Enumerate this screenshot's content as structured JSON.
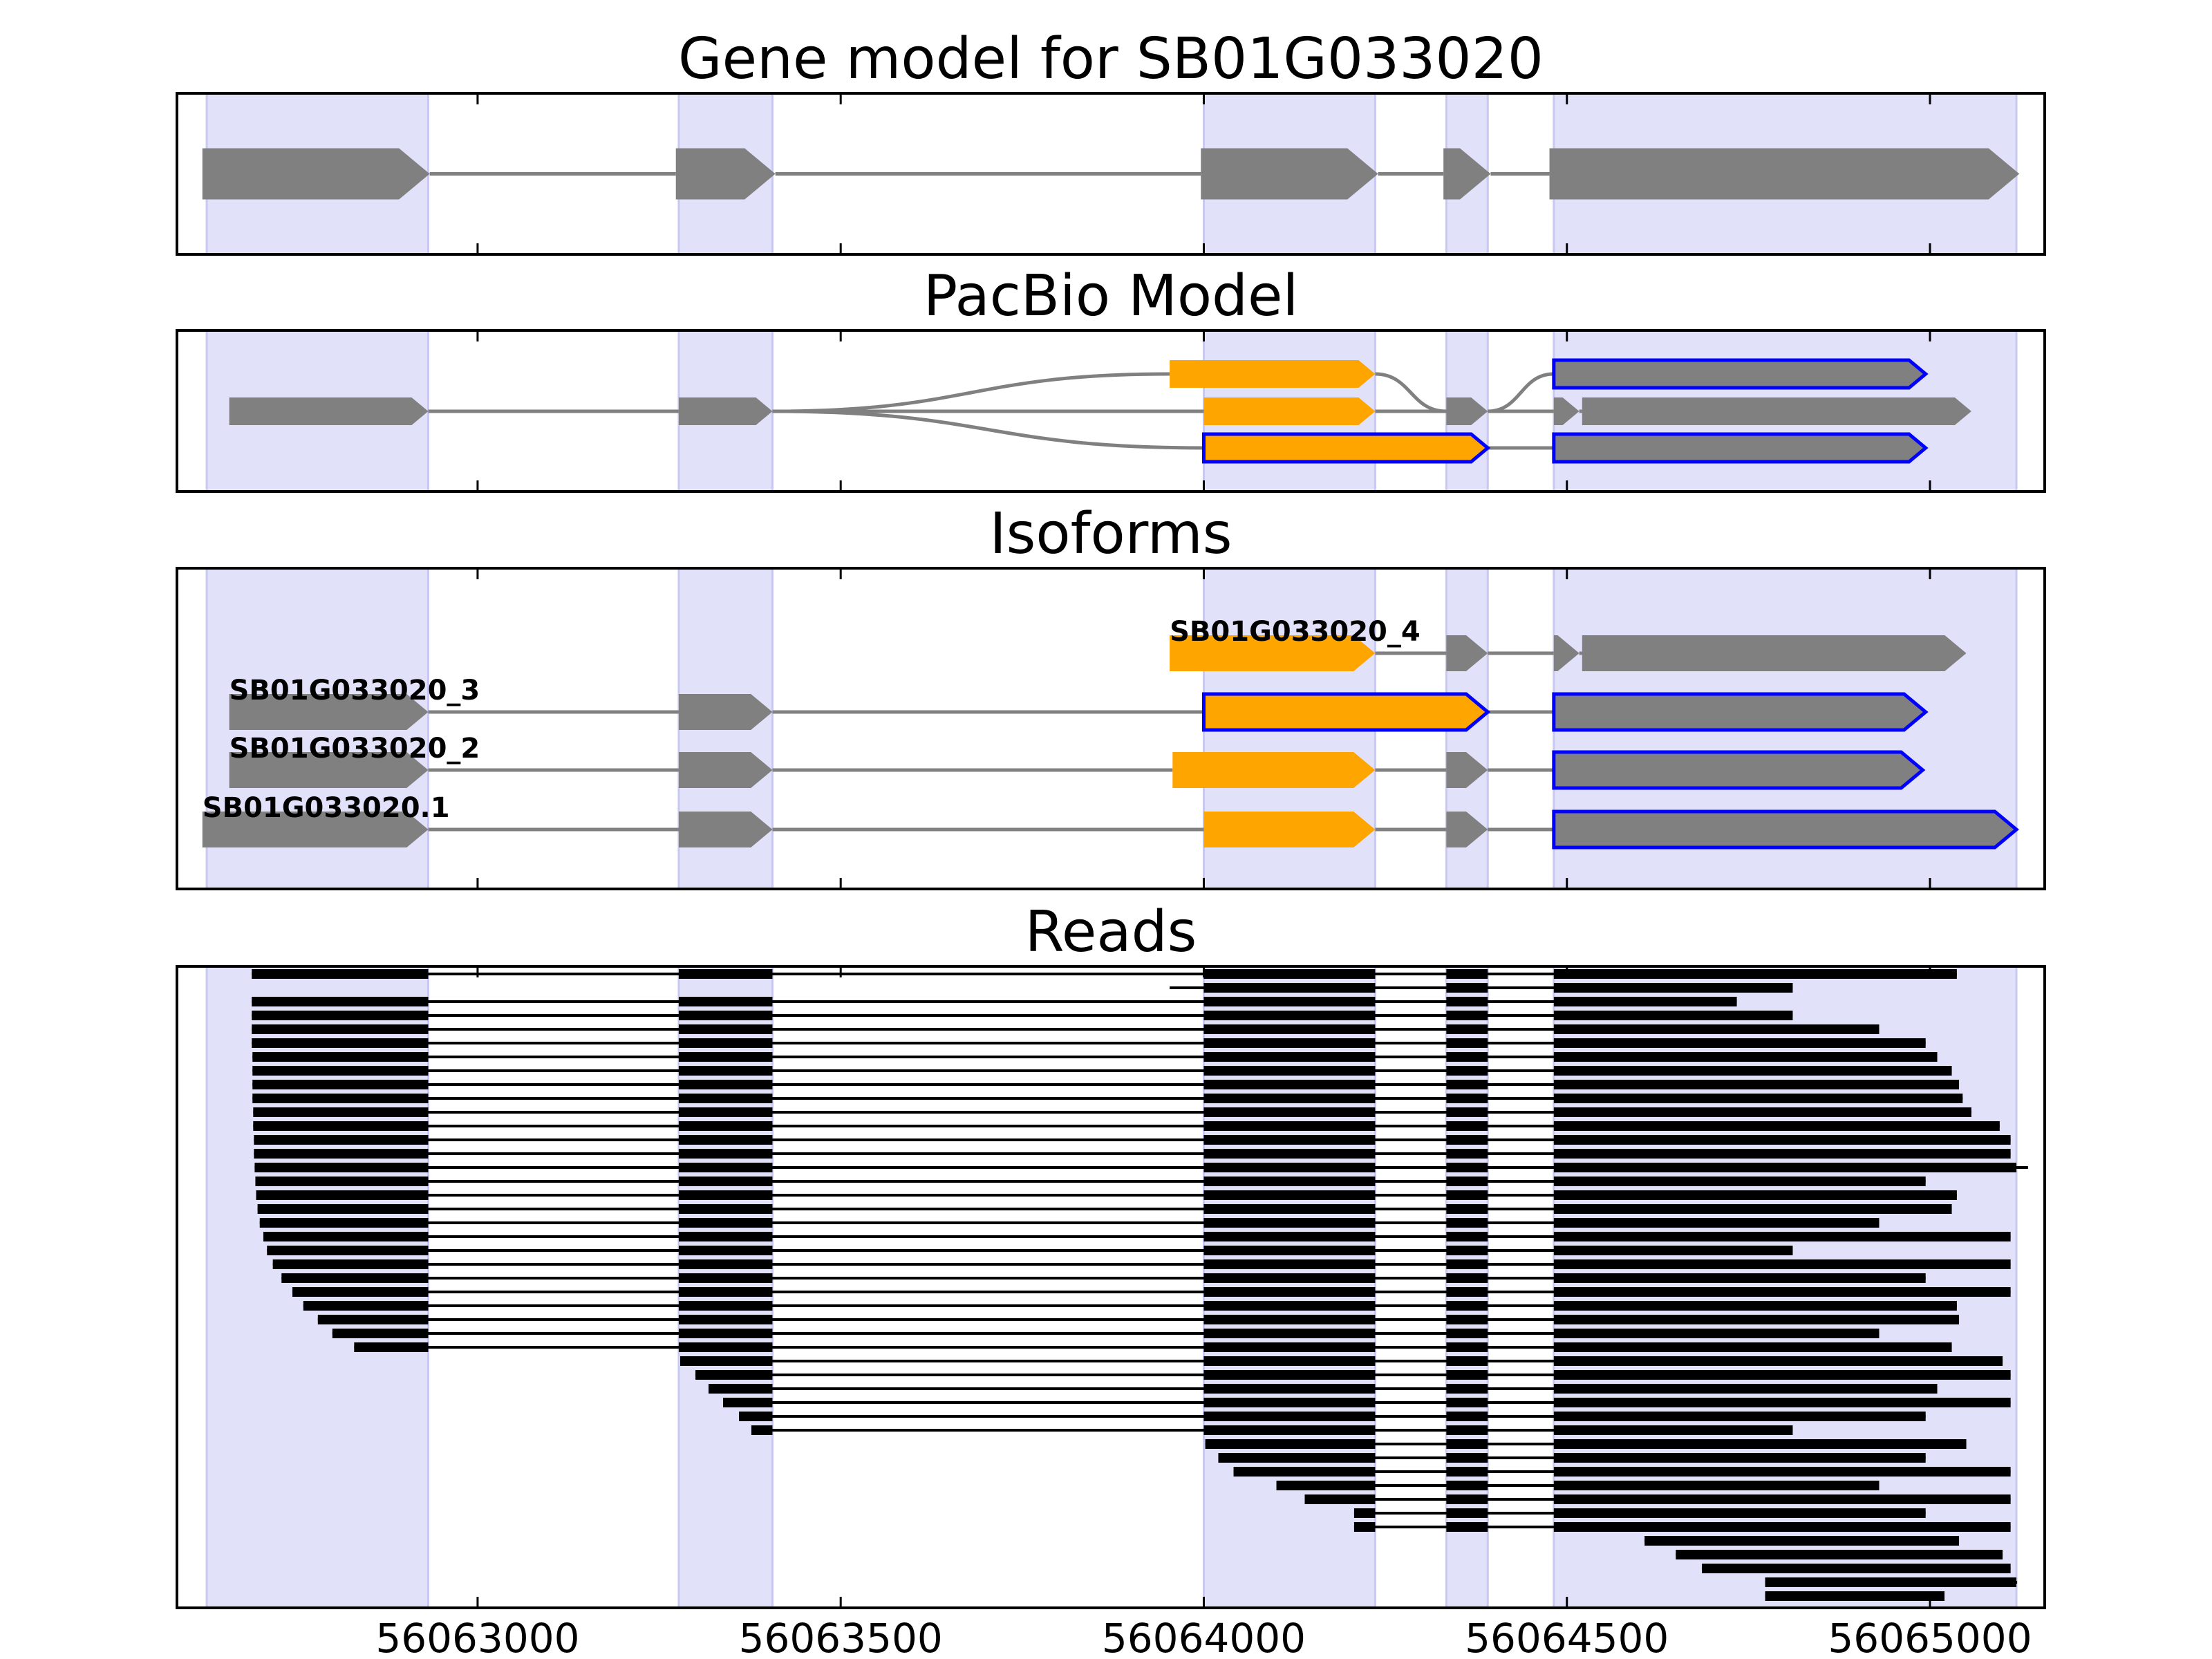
{
  "chart_data": {
    "type": "gene-structure",
    "titles": [
      "Gene model for SB01G033020",
      "PacBio Model",
      "Isoforms",
      "Reads"
    ],
    "xlim": [
      56062586,
      56065158
    ],
    "xticks": [
      56063000,
      56063500,
      56064000,
      56064500,
      56065000
    ],
    "shade_color": "#e1e1fa",
    "exons": [
      {
        "start": 56062627,
        "end": 56062932
      },
      {
        "start": 56063277,
        "end": 56063406
      },
      {
        "start": 56064000,
        "end": 56064236
      },
      {
        "start": 56064334,
        "end": 56064391
      },
      {
        "start": 56064482,
        "end": 56065119
      }
    ],
    "gene_model": {
      "color": "#808080",
      "blocks": [
        {
          "start": 56062621,
          "end": 56062934
        },
        {
          "start": 56063273,
          "end": 56063410
        },
        {
          "start": 56063996,
          "end": 56064240
        },
        {
          "start": 56064330,
          "end": 56064395
        },
        {
          "start": 56064476,
          "end": 56065123
        }
      ]
    },
    "pacbio": {
      "line_color": "#808080",
      "rows": [
        [
          {
            "start": 56063953,
            "end": 56064236,
            "fill": "#ffa500"
          },
          {
            "start": 56064482,
            "end": 56064994,
            "fill": "#808080",
            "edge": "#0000ff"
          }
        ],
        [
          {
            "start": 56062658,
            "end": 56062932,
            "fill": "#808080"
          },
          {
            "start": 56063277,
            "end": 56063406,
            "fill": "#808080"
          },
          {
            "start": 56064000,
            "end": 56064236,
            "fill": "#ffa500"
          },
          {
            "start": 56064334,
            "end": 56064391,
            "fill": "#808080"
          },
          {
            "start": 56064482,
            "end": 56064517,
            "fill": "#808080"
          },
          {
            "start": 56064521,
            "end": 56065057,
            "fill": "#808080"
          }
        ],
        [
          {
            "start": 56064000,
            "end": 56064391,
            "fill": "#ffa500",
            "edge": "#0000ff"
          },
          {
            "start": 56064482,
            "end": 56064994,
            "fill": "#808080",
            "edge": "#0000ff"
          }
        ]
      ]
    },
    "isoforms": [
      {
        "name": "SB01G033020_4",
        "blocks": [
          {
            "start": 56063953,
            "end": 56064236,
            "fill": "#ffa500"
          },
          {
            "start": 56064334,
            "end": 56064391,
            "fill": "#808080"
          },
          {
            "start": 56064482,
            "end": 56064517,
            "fill": "#808080"
          },
          {
            "start": 56064521,
            "end": 56065050,
            "fill": "#808080"
          }
        ]
      },
      {
        "name": "SB01G033020_3",
        "blocks": [
          {
            "start": 56062658,
            "end": 56062932,
            "fill": "#808080"
          },
          {
            "start": 56063277,
            "end": 56063406,
            "fill": "#808080"
          },
          {
            "start": 56064000,
            "end": 56064391,
            "fill": "#ffa500",
            "edge": "#0000ff"
          },
          {
            "start": 56064482,
            "end": 56064994,
            "fill": "#808080",
            "edge": "#0000ff"
          }
        ]
      },
      {
        "name": "SB01G033020_2",
        "blocks": [
          {
            "start": 56062658,
            "end": 56062932,
            "fill": "#808080"
          },
          {
            "start": 56063277,
            "end": 56063406,
            "fill": "#808080"
          },
          {
            "start": 56063957,
            "end": 56064236,
            "fill": "#ffa500"
          },
          {
            "start": 56064334,
            "end": 56064391,
            "fill": "#808080"
          },
          {
            "start": 56064482,
            "end": 56064990,
            "fill": "#808080",
            "edge": "#0000ff"
          }
        ]
      },
      {
        "name": "SB01G033020.1",
        "blocks": [
          {
            "start": 56062621,
            "end": 56062932,
            "fill": "#808080"
          },
          {
            "start": 56063277,
            "end": 56063406,
            "fill": "#808080"
          },
          {
            "start": 56064000,
            "end": 56064236,
            "fill": "#ffa500"
          },
          {
            "start": 56064334,
            "end": 56064391,
            "fill": "#808080"
          },
          {
            "start": 56064482,
            "end": 56065119,
            "fill": "#808080",
            "edge": "#0000ff"
          }
        ]
      }
    ],
    "reads": {
      "color": "#000000",
      "items": [
        {
          "start": 56062689,
          "end": 56065037
        },
        {
          "start": 56063953,
          "end": 56064811
        },
        {
          "start": 56062689,
          "end": 56064734
        },
        {
          "start": 56062689,
          "end": 56064811
        },
        {
          "start": 56062689,
          "end": 56064930
        },
        {
          "start": 56062689,
          "end": 56064994
        },
        {
          "start": 56062690,
          "end": 56065010
        },
        {
          "start": 56062690,
          "end": 56065030
        },
        {
          "start": 56062690,
          "end": 56065040
        },
        {
          "start": 56062690,
          "end": 56065045
        },
        {
          "start": 56062691,
          "end": 56065057
        },
        {
          "start": 56062691,
          "end": 56065096
        },
        {
          "start": 56062692,
          "end": 56065111
        },
        {
          "start": 56062692,
          "end": 56065111
        },
        {
          "start": 56062693,
          "end": 56065135
        },
        {
          "start": 56062694,
          "end": 56064994
        },
        {
          "start": 56062695,
          "end": 56065037
        },
        {
          "start": 56062697,
          "end": 56065030
        },
        {
          "start": 56062700,
          "end": 56064930
        },
        {
          "start": 56062705,
          "end": 56065111
        },
        {
          "start": 56062710,
          "end": 56064811
        },
        {
          "start": 56062718,
          "end": 56065111
        },
        {
          "start": 56062730,
          "end": 56064994
        },
        {
          "start": 56062745,
          "end": 56065111
        },
        {
          "start": 56062760,
          "end": 56065037
        },
        {
          "start": 56062780,
          "end": 56065040
        },
        {
          "start": 56062800,
          "end": 56064930
        },
        {
          "start": 56062830,
          "end": 56065030
        },
        {
          "start": 56063279,
          "end": 56065100
        },
        {
          "start": 56063300,
          "end": 56065111
        },
        {
          "start": 56063318,
          "end": 56065010
        },
        {
          "start": 56063338,
          "end": 56065111
        },
        {
          "start": 56063360,
          "end": 56064994
        },
        {
          "start": 56063377,
          "end": 56064811
        },
        {
          "start": 56064002,
          "end": 56065050
        },
        {
          "start": 56064020,
          "end": 56064994
        },
        {
          "start": 56064041,
          "end": 56065111
        },
        {
          "start": 56064100,
          "end": 56064930
        },
        {
          "start": 56064139,
          "end": 56065111
        },
        {
          "start": 56064207,
          "end": 56064994
        },
        {
          "start": 56064207,
          "end": 56065111
        },
        {
          "start": 56064607,
          "end": 56065040
        },
        {
          "start": 56064650,
          "end": 56065100
        },
        {
          "start": 56064686,
          "end": 56065111
        },
        {
          "start": 56064773,
          "end": 56065120
        },
        {
          "start": 56064773,
          "end": 56065020
        }
      ]
    }
  }
}
